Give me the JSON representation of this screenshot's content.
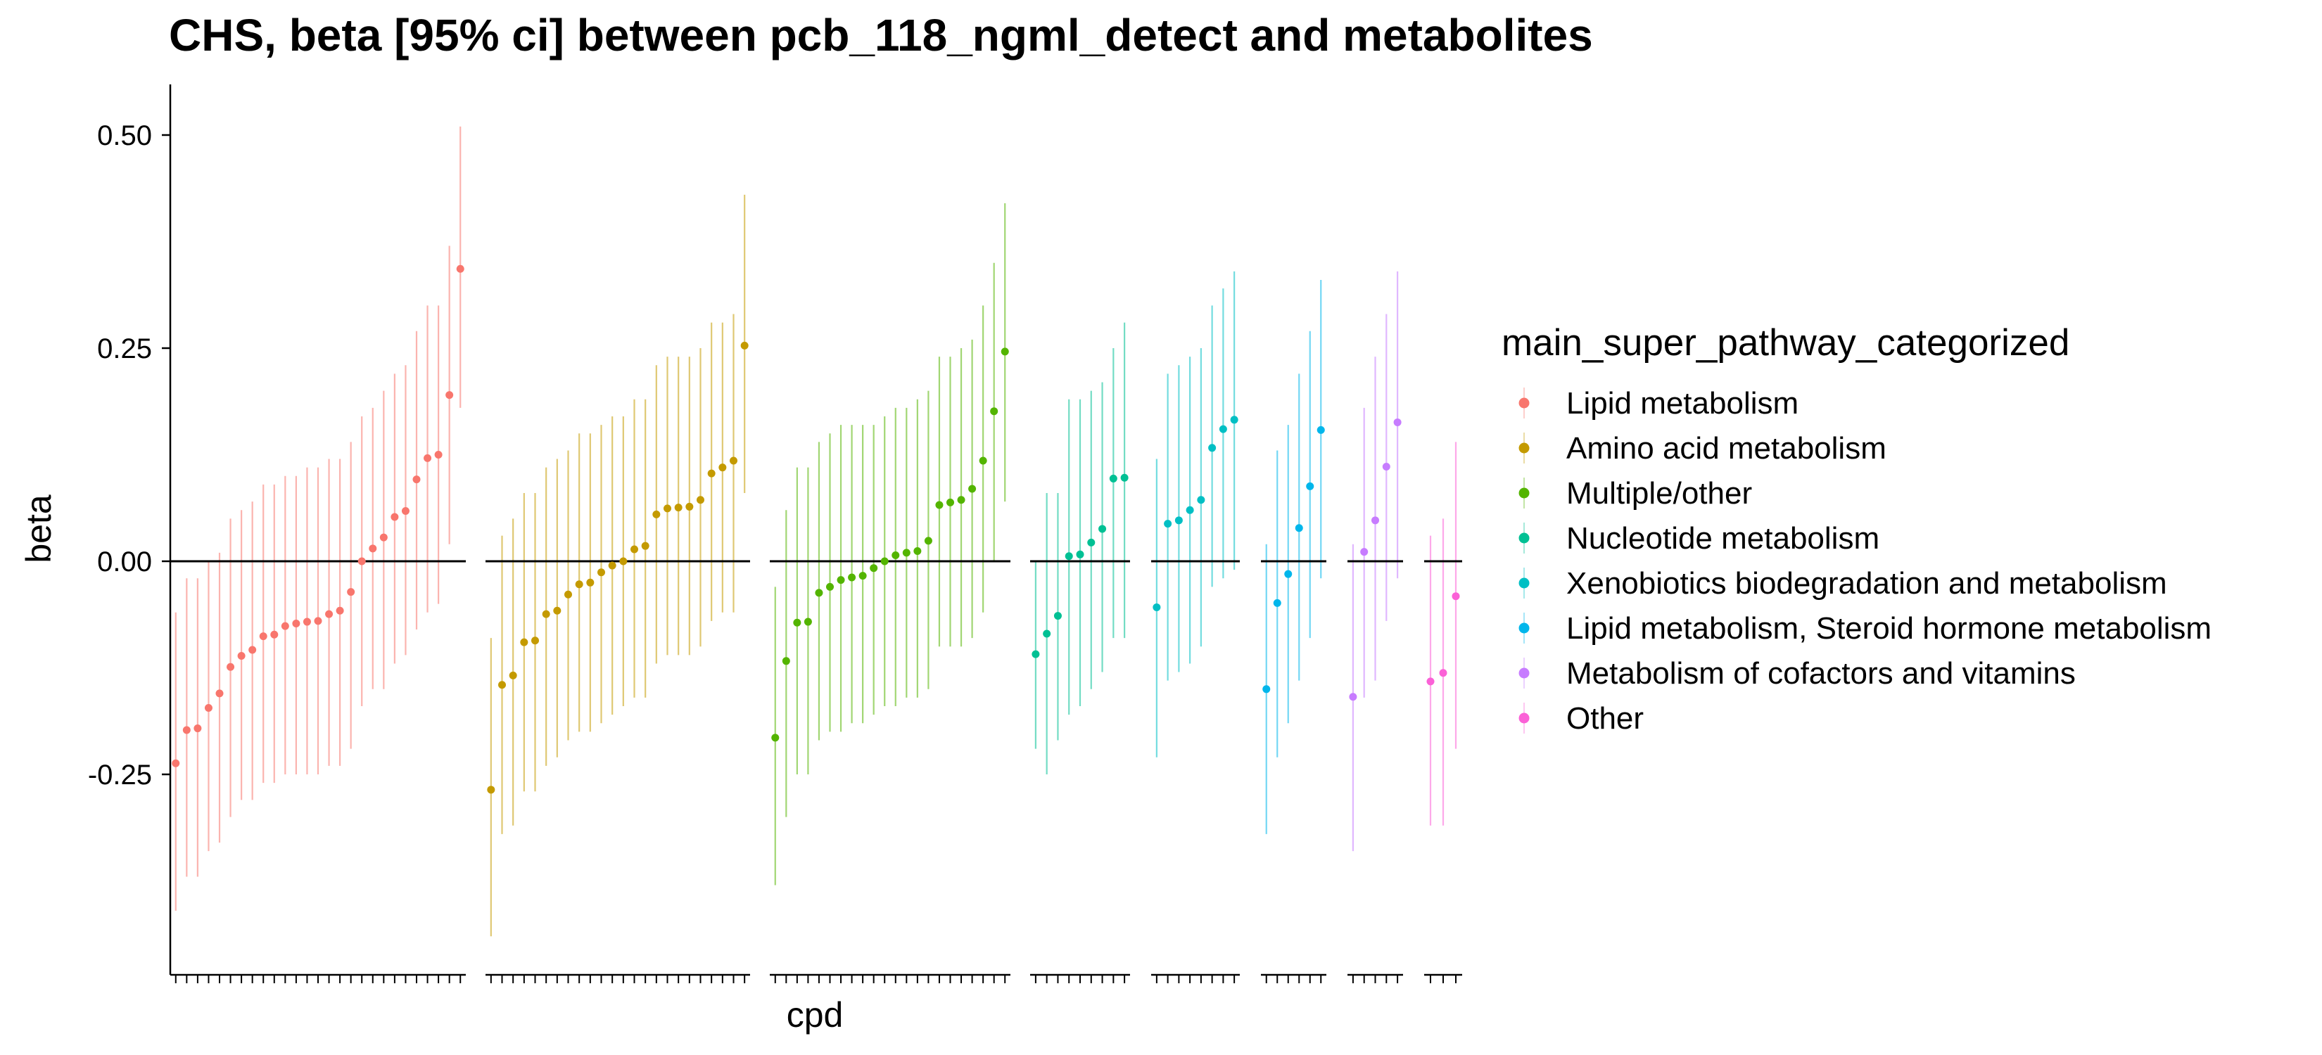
{
  "chart_data": {
    "type": "scatter",
    "title": "CHS, beta [95% ci] between pcb_118_ngml_detect and metabolites",
    "xlabel": "cpd",
    "ylabel": "beta",
    "yticks": [
      "0.50",
      "0.25",
      "0.00",
      "-0.25"
    ],
    "ytick_values": [
      0.5,
      0.25,
      0.0,
      -0.25
    ],
    "ylim": [
      -0.485,
      0.555
    ],
    "reference_line": 0,
    "grid": false,
    "legend": {
      "title": "main_super_pathway_categorized",
      "placement": "right"
    },
    "series": [
      {
        "name": "Lipid metabolism",
        "color": "#F8766D",
        "beta": [
          -0.237,
          -0.198,
          -0.196,
          -0.172,
          -0.155,
          -0.124,
          -0.111,
          -0.104,
          -0.088,
          -0.086,
          -0.076,
          -0.073,
          -0.071,
          -0.07,
          -0.062,
          -0.058,
          -0.036,
          0.0,
          0.015,
          0.028,
          0.052,
          0.059,
          0.096,
          0.121,
          0.125,
          0.195,
          0.343
        ],
        "ci_low": [
          -0.41,
          -0.37,
          -0.37,
          -0.34,
          -0.33,
          -0.3,
          -0.28,
          -0.28,
          -0.26,
          -0.26,
          -0.25,
          -0.25,
          -0.25,
          -0.25,
          -0.24,
          -0.24,
          -0.22,
          -0.17,
          -0.15,
          -0.15,
          -0.12,
          -0.11,
          -0.08,
          -0.06,
          -0.05,
          0.02,
          0.18
        ],
        "ci_high": [
          -0.06,
          -0.02,
          -0.02,
          -0.0,
          0.01,
          0.05,
          0.06,
          0.07,
          0.09,
          0.09,
          0.1,
          0.1,
          0.11,
          0.11,
          0.12,
          0.12,
          0.14,
          0.17,
          0.18,
          0.2,
          0.22,
          0.23,
          0.27,
          0.3,
          0.3,
          0.37,
          0.51
        ]
      },
      {
        "name": "Amino acid metabolism",
        "color": "#C49A00",
        "beta": [
          -0.268,
          -0.145,
          -0.134,
          -0.095,
          -0.093,
          -0.062,
          -0.058,
          -0.039,
          -0.027,
          -0.025,
          -0.013,
          -0.005,
          0.0,
          0.014,
          0.018,
          0.055,
          0.062,
          0.063,
          0.064,
          0.072,
          0.103,
          0.11,
          0.118,
          0.253
        ],
        "ci_low": [
          -0.44,
          -0.32,
          -0.31,
          -0.27,
          -0.27,
          -0.24,
          -0.23,
          -0.21,
          -0.2,
          -0.2,
          -0.19,
          -0.18,
          -0.17,
          -0.16,
          -0.16,
          -0.12,
          -0.11,
          -0.11,
          -0.11,
          -0.1,
          -0.07,
          -0.06,
          -0.06,
          0.08
        ],
        "ci_high": [
          -0.09,
          0.03,
          0.05,
          0.08,
          0.08,
          0.11,
          0.12,
          0.13,
          0.15,
          0.15,
          0.16,
          0.17,
          0.17,
          0.19,
          0.19,
          0.23,
          0.24,
          0.24,
          0.24,
          0.25,
          0.28,
          0.28,
          0.29,
          0.43
        ]
      },
      {
        "name": "Multiple/other",
        "color": "#53B400",
        "beta": [
          -0.207,
          -0.117,
          -0.072,
          -0.071,
          -0.037,
          -0.03,
          -0.022,
          -0.019,
          -0.017,
          -0.008,
          0.0,
          0.007,
          0.01,
          0.012,
          0.024,
          0.066,
          0.069,
          0.072,
          0.085,
          0.118,
          0.176,
          0.246
        ],
        "ci_low": [
          -0.38,
          -0.3,
          -0.25,
          -0.25,
          -0.21,
          -0.2,
          -0.2,
          -0.19,
          -0.19,
          -0.18,
          -0.17,
          -0.17,
          -0.16,
          -0.16,
          -0.15,
          -0.1,
          -0.1,
          -0.1,
          -0.09,
          -0.06,
          0.0,
          0.07
        ],
        "ci_high": [
          -0.03,
          0.06,
          0.11,
          0.11,
          0.14,
          0.15,
          0.16,
          0.16,
          0.16,
          0.16,
          0.17,
          0.18,
          0.18,
          0.19,
          0.2,
          0.24,
          0.24,
          0.25,
          0.26,
          0.3,
          0.35,
          0.42
        ]
      },
      {
        "name": "Nucleotide metabolism",
        "color": "#00C094",
        "beta": [
          -0.109,
          -0.085,
          -0.064,
          0.006,
          0.008,
          0.022,
          0.038,
          0.097,
          0.098
        ],
        "ci_low": [
          -0.22,
          -0.25,
          -0.21,
          -0.18,
          -0.17,
          -0.15,
          -0.13,
          -0.09,
          -0.09
        ],
        "ci_high": [
          0.0,
          0.08,
          0.08,
          0.19,
          0.19,
          0.2,
          0.21,
          0.25,
          0.28
        ]
      },
      {
        "name": "Xenobiotics biodegradation and metabolism",
        "color": "#00BFC4",
        "beta": [
          -0.054,
          0.044,
          0.048,
          0.06,
          0.072,
          0.133,
          0.155,
          0.166
        ],
        "ci_low": [
          -0.23,
          -0.14,
          -0.13,
          -0.12,
          -0.1,
          -0.03,
          -0.02,
          -0.01
        ],
        "ci_high": [
          0.12,
          0.22,
          0.23,
          0.24,
          0.25,
          0.3,
          0.32,
          0.34
        ]
      },
      {
        "name": "Lipid metabolism, Steroid hormone metabolism",
        "color": "#00B6EB",
        "beta": [
          -0.15,
          -0.049,
          -0.015,
          0.039,
          0.088,
          0.154
        ],
        "ci_low": [
          -0.32,
          -0.23,
          -0.19,
          -0.14,
          -0.09,
          -0.02
        ],
        "ci_high": [
          0.02,
          0.13,
          0.16,
          0.22,
          0.27,
          0.33
        ]
      },
      {
        "name": "Metabolism of cofactors and vitamins",
        "color": "#C77CFF",
        "beta": [
          -0.159,
          0.011,
          0.048,
          0.111,
          0.163
        ],
        "ci_low": [
          -0.34,
          -0.16,
          -0.14,
          -0.07,
          -0.02
        ],
        "ci_high": [
          0.02,
          0.18,
          0.24,
          0.29,
          0.34
        ]
      },
      {
        "name": "Other",
        "color": "#FB61D7",
        "beta": [
          -0.141,
          -0.131,
          -0.041
        ],
        "ci_low": [
          -0.31,
          -0.31,
          -0.22
        ],
        "ci_high": [
          0.03,
          0.05,
          0.14
        ]
      }
    ]
  }
}
